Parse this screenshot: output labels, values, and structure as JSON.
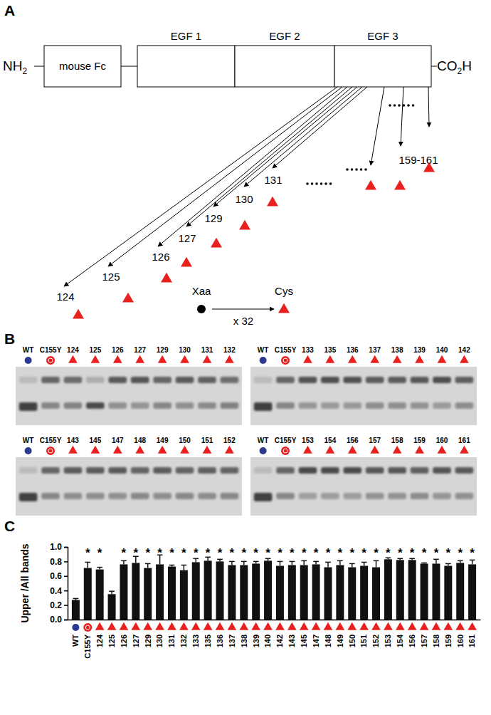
{
  "panel_a": {
    "label": "A",
    "n_terminus": "NH2",
    "c_terminus": "CO2H",
    "domains": [
      "mouse Fc",
      "EGF 1",
      "EGF 2",
      "EGF 3"
    ],
    "positions": [
      "124",
      "125",
      "126",
      "127",
      "129",
      "130",
      "131",
      null,
      "159-161",
      null
    ],
    "legend_from": "Xaa",
    "legend_to": "Cys",
    "legend_count": "x 32"
  },
  "panel_b": {
    "label": "B",
    "gels": [
      {
        "lanes": [
          "WT",
          "C155Y",
          "124",
          "125",
          "126",
          "127",
          "129",
          "130",
          "131",
          "132"
        ]
      },
      {
        "lanes": [
          "WT",
          "C155Y",
          "133",
          "135",
          "136",
          "137",
          "138",
          "139",
          "140",
          "142"
        ]
      },
      {
        "lanes": [
          "WT",
          "C155Y",
          "143",
          "145",
          "147",
          "148",
          "149",
          "150",
          "151",
          "152"
        ]
      },
      {
        "lanes": [
          "WT",
          "C155Y",
          "153",
          "154",
          "156",
          "157",
          "158",
          "159",
          "160",
          "161"
        ]
      }
    ]
  },
  "chart_data": {
    "type": "bar",
    "panel_label": "C",
    "y_label": "Upper /All bands",
    "categories": [
      "WT",
      "C155Y",
      "124",
      "125",
      "126",
      "127",
      "129",
      "130",
      "131",
      "132",
      "133",
      "135",
      "136",
      "137",
      "138",
      "139",
      "140",
      "142",
      "143",
      "145",
      "147",
      "148",
      "149",
      "150",
      "151",
      "152",
      "153",
      "154",
      "156",
      "157",
      "158",
      "159",
      "160",
      "161"
    ],
    "values": [
      0.27,
      0.71,
      0.69,
      0.35,
      0.76,
      0.78,
      0.71,
      0.76,
      0.73,
      0.68,
      0.79,
      0.81,
      0.8,
      0.75,
      0.75,
      0.77,
      0.81,
      0.74,
      0.75,
      0.75,
      0.76,
      0.72,
      0.75,
      0.72,
      0.74,
      0.72,
      0.83,
      0.82,
      0.82,
      0.77,
      0.77,
      0.74,
      0.78,
      0.76
    ],
    "errors": [
      0.02,
      0.08,
      0.03,
      0.04,
      0.05,
      0.09,
      0.06,
      0.13,
      0.02,
      0.07,
      0.05,
      0.05,
      0.03,
      0.05,
      0.05,
      0.03,
      0.03,
      0.06,
      0.05,
      0.06,
      0.04,
      0.07,
      0.06,
      0.05,
      0.05,
      0.09,
      0.02,
      0.02,
      0.02,
      0.01,
      0.06,
      0.03,
      0.03,
      0.06
    ],
    "significance": [
      null,
      "*",
      "*",
      null,
      "*",
      "*",
      "*",
      "*",
      "*",
      "*",
      "*",
      "*",
      "*",
      "*",
      "*",
      "*",
      "*",
      "*",
      "*",
      "*",
      "*",
      "*",
      "*",
      "*",
      "*",
      "*",
      "*",
      "*",
      "*",
      "*",
      "*",
      "*",
      "*",
      "*"
    ],
    "color": "#111111",
    "ylim": [
      0,
      1
    ],
    "yticks": [
      {
        "value": 0,
        "label": "0.0"
      },
      0.2,
      0.4,
      0.6,
      0.8,
      {
        "value": 1,
        "label": "1.0"
      }
    ]
  }
}
